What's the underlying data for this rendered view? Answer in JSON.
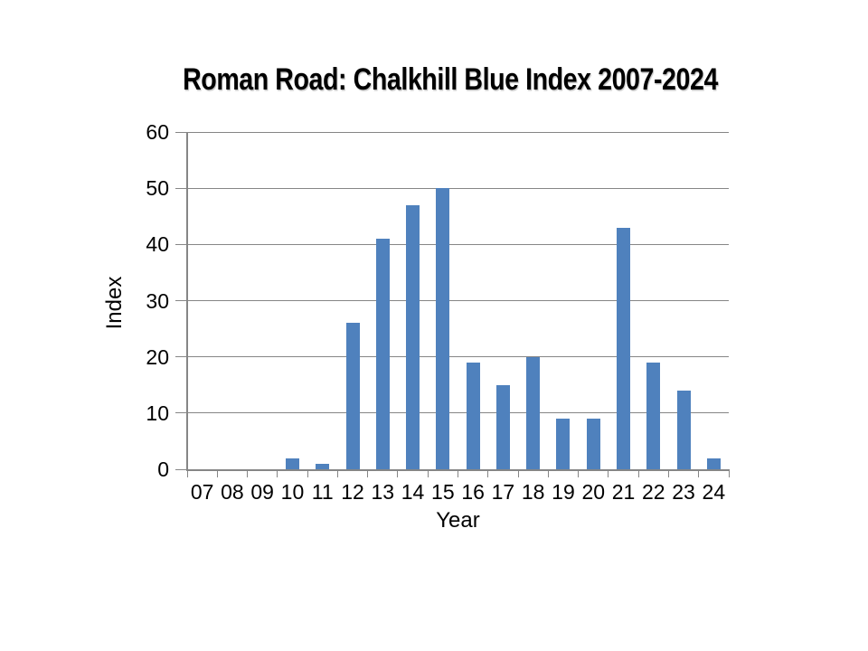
{
  "chart_data": {
    "type": "bar",
    "title": "Roman Road: Chalkhill Blue Index 2007-2024",
    "xlabel": "Year",
    "ylabel": "Index",
    "categories": [
      "07",
      "08",
      "09",
      "10",
      "11",
      "12",
      "13",
      "14",
      "15",
      "16",
      "17",
      "18",
      "19",
      "20",
      "21",
      "22",
      "23",
      "24"
    ],
    "values": [
      0,
      0,
      0,
      2,
      1,
      26,
      41,
      47,
      50,
      19,
      15,
      20,
      9,
      9,
      43,
      19,
      14,
      2
    ],
    "ylim": [
      0,
      60
    ],
    "yticks": [
      0,
      10,
      20,
      30,
      40,
      50,
      60
    ],
    "grid": true,
    "legend_position": "none",
    "colors": {
      "bar": "#4F81BD",
      "gridline": "#868686",
      "axis": "#868686",
      "text": "#000000",
      "background": "#FFFFFF"
    }
  }
}
